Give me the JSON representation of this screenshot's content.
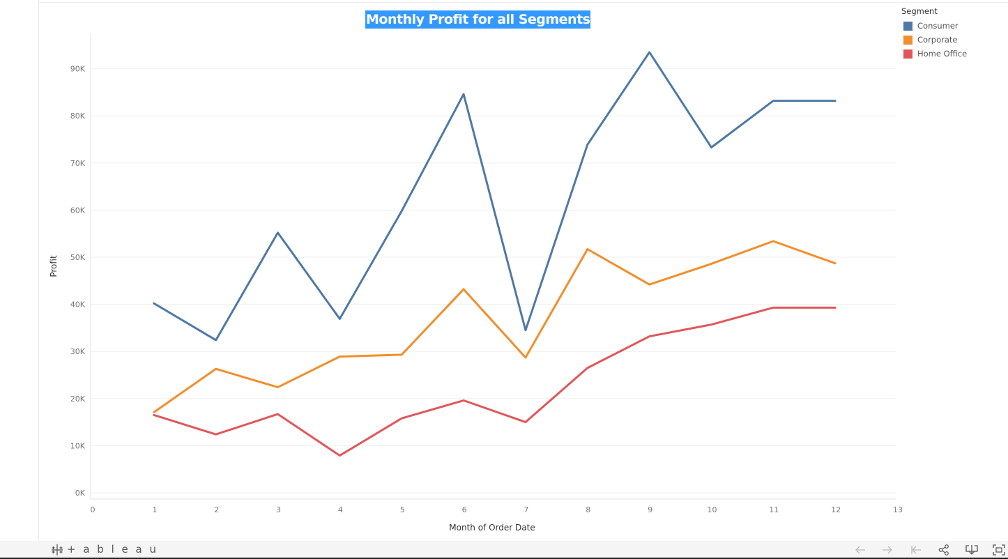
{
  "chart_data": {
    "type": "line",
    "title": "Monthly Profit for all Segments",
    "xlabel": "Month of Order Date",
    "ylabel": "Profit",
    "x": [
      1,
      2,
      3,
      4,
      5,
      6,
      7,
      8,
      9,
      10,
      11,
      12
    ],
    "xticks": [
      "0",
      "1",
      "2",
      "3",
      "4",
      "5",
      "6",
      "7",
      "8",
      "9",
      "10",
      "11",
      "12",
      "13"
    ],
    "yticks": [
      "0K",
      "10K",
      "20K",
      "30K",
      "40K",
      "50K",
      "60K",
      "70K",
      "80K",
      "90K"
    ],
    "xlim": [
      0,
      13
    ],
    "ylim": [
      0,
      98000
    ],
    "grid": true,
    "legend_position": "top-right",
    "series": [
      {
        "name": "Consumer",
        "color": "#4e79a7",
        "values": [
          40200,
          32400,
          55200,
          36900,
          59800,
          84600,
          34500,
          73900,
          93500,
          73300,
          83200,
          83200
        ]
      },
      {
        "name": "Corporate",
        "color": "#f28e2b",
        "values": [
          17100,
          26300,
          22400,
          28900,
          29300,
          43200,
          28700,
          51700,
          44200,
          48600,
          53400,
          48700
        ]
      },
      {
        "name": "Home Office",
        "color": "#e15759",
        "values": [
          16500,
          12400,
          16700,
          7900,
          15800,
          19600,
          15000,
          26500,
          33200,
          35700,
          39300,
          39300
        ]
      }
    ]
  },
  "legend": {
    "title": "Segment",
    "items": [
      {
        "label": "Consumer",
        "color": "#4e79a7"
      },
      {
        "label": "Corporate",
        "color": "#f28e2b"
      },
      {
        "label": "Home Office",
        "color": "#e15759"
      }
    ]
  },
  "footer": {
    "brand": "+ a b l e a u",
    "icons": [
      "undo-icon",
      "redo-icon",
      "revert-icon",
      "share-icon",
      "download-icon",
      "fullscreen-icon"
    ]
  }
}
